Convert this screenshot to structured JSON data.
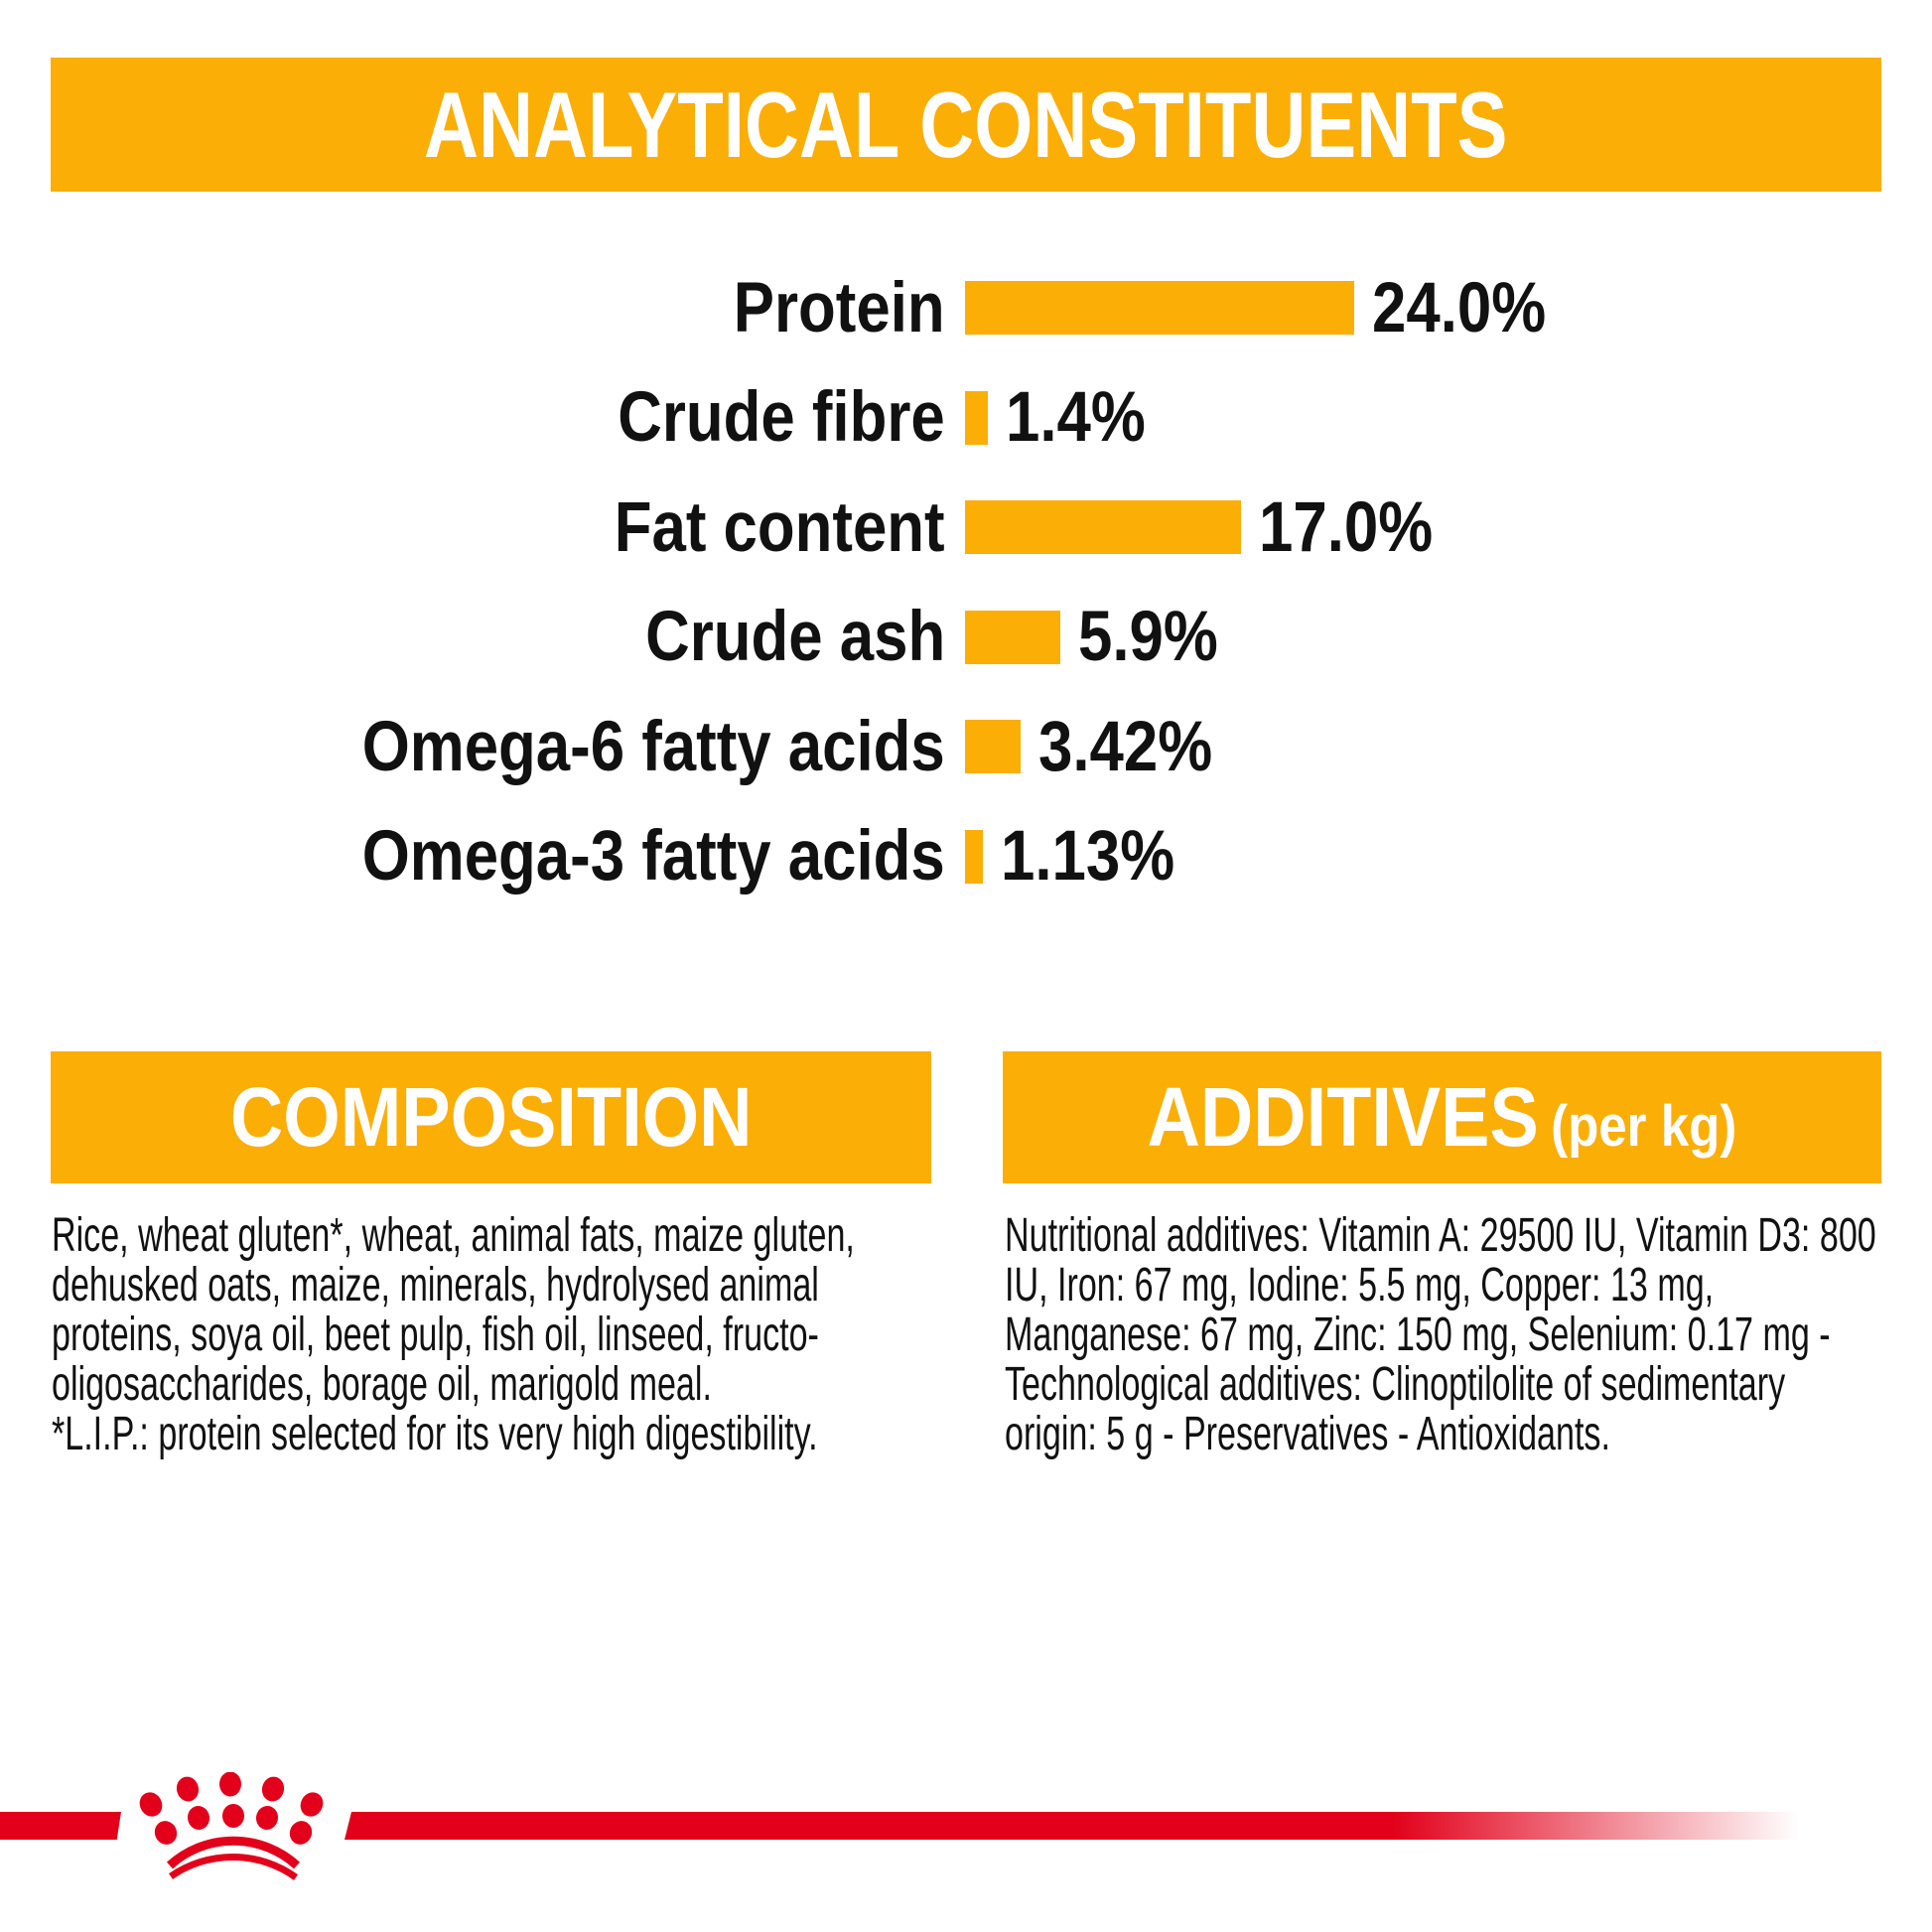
{
  "header": {
    "title": "ANALYTICAL CONSTITUENTS"
  },
  "chart_data": {
    "type": "bar",
    "orientation": "horizontal",
    "categories": [
      "Protein",
      "Crude fibre",
      "Fat content",
      "Crude ash",
      "Omega-6 fatty acids",
      "Omega-3 fatty acids"
    ],
    "values": [
      24.0,
      1.4,
      17.0,
      5.9,
      3.42,
      1.13
    ],
    "value_labels": [
      "24.0%",
      "1.4%",
      "17.0%",
      "5.9%",
      "3.42%",
      "1.13%"
    ],
    "title": "ANALYTICAL CONSTITUENTS",
    "xlim": [
      0,
      24
    ],
    "grid": false,
    "bar_color": "#FBAE06"
  },
  "sections": {
    "composition": {
      "title": "COMPOSITION",
      "lines": [
        "Rice, wheat gluten*, wheat, animal fats, maize gluten,",
        "dehusked oats, maize, minerals, hydrolysed animal",
        "proteins, soya oil, beet pulp, fish oil, linseed, fructo-",
        "oligosaccharides, borage oil, marigold meal.",
        "*L.I.P.: protein selected for its very high digestibility."
      ]
    },
    "additives": {
      "title": "ADDITIVES",
      "title_suffix": "(per kg)",
      "lines": [
        "Nutritional additives: Vitamin A: 29500 IU, Vitamin D3: 800",
        "IU, Iron: 67 mg, Iodine: 5.5 mg, Copper: 13 mg,",
        "Manganese: 67 mg, Zinc: 150 mg, Selenium: 0.17 mg -",
        "Technological additives: Clinoptilolite of sedimentary",
        "origin: 5 g - Preservatives - Antioxidants."
      ]
    }
  },
  "footer": {
    "logo": "royal-canin-crown"
  },
  "colors": {
    "accent_orange": "#FBAE06",
    "brand_red": "#E2001A",
    "text": "#111111"
  }
}
